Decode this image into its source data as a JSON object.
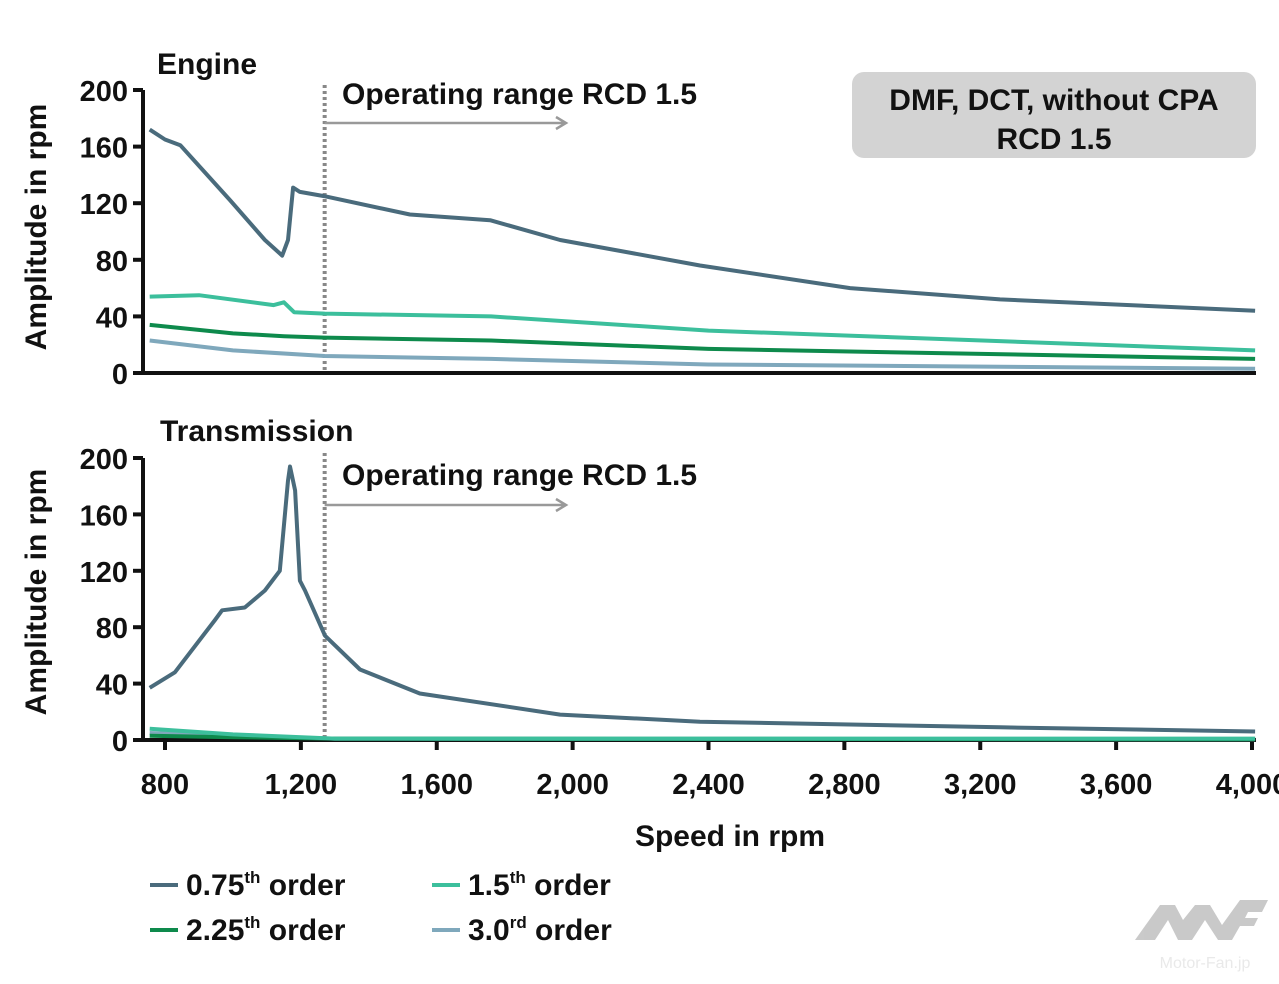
{
  "chart_data": [
    {
      "type": "line",
      "title": "Engine",
      "xlabel": "",
      "ylabel": "Amplitude in rpm",
      "xlim": [
        740,
        4010
      ],
      "ylim": [
        0,
        200
      ],
      "yticks": [
        "0",
        "40",
        "80",
        "120",
        "160",
        "200"
      ],
      "annotation": "Operating range RCD 1.5",
      "operating_range_start_rpm": 1270,
      "box_label": [
        "DMF, DCT, without CPA",
        "RCD 1.5"
      ],
      "series": [
        {
          "name": "0.75th order",
          "color": "#4a6b7c",
          "x": [
            755,
            800,
            845,
            992,
            1094,
            1145,
            1162,
            1177,
            1197,
            1268,
            1521,
            1757,
            1963,
            2375,
            2817,
            3258,
            4009
          ],
          "y": [
            172,
            165,
            161,
            122,
            94,
            83,
            94,
            131,
            128,
            125,
            112,
            108,
            94,
            76,
            60,
            52,
            44
          ]
        },
        {
          "name": "1.5th order",
          "color": "#3cbf9c",
          "x": [
            755,
            900,
            1120,
            1150,
            1180,
            1270,
            1760,
            2400,
            4009
          ],
          "y": [
            54,
            55,
            48,
            50,
            43,
            42,
            40,
            30,
            16
          ]
        },
        {
          "name": "2.25th order",
          "color": "#0e8a4c",
          "x": [
            755,
            1000,
            1150,
            1270,
            1760,
            2400,
            4009
          ],
          "y": [
            34,
            28,
            26,
            25,
            23,
            17,
            10
          ]
        },
        {
          "name": "3.0rd order",
          "color": "#7fa8bc",
          "x": [
            755,
            1000,
            1270,
            1760,
            2400,
            4009
          ],
          "y": [
            23,
            16,
            12,
            10,
            6,
            3
          ]
        }
      ]
    },
    {
      "type": "line",
      "title": "Transmission",
      "xlabel": "Speed in rpm",
      "ylabel": "Amplitude in rpm",
      "xlim": [
        740,
        4010
      ],
      "ylim": [
        0,
        200
      ],
      "xticks": [
        "800",
        "1,200",
        "1,600",
        "2,000",
        "2,400",
        "2,800",
        "3,200",
        "3,600",
        "4,000"
      ],
      "yticks": [
        "0",
        "40",
        "80",
        "120",
        "160",
        "200"
      ],
      "annotation": "Operating range RCD 1.5",
      "operating_range_start_rpm": 1270,
      "series": [
        {
          "name": "0.75th order",
          "color": "#4a6b7c",
          "x": [
            755,
            829,
            947,
            968,
            1035,
            1094,
            1138,
            1162,
            1168,
            1183,
            1197,
            1212,
            1271,
            1374,
            1550,
            1963,
            2375,
            3258,
            4009
          ],
          "y": [
            37,
            48,
            85,
            92,
            94,
            106,
            120,
            184,
            194,
            177,
            113,
            106,
            74,
            50,
            33,
            18,
            13,
            9,
            6
          ]
        },
        {
          "name": "1.5th order",
          "color": "#3cbf9c",
          "x": [
            755,
            1000,
            1300,
            4009
          ],
          "y": [
            8,
            4,
            1,
            1
          ]
        },
        {
          "name": "2.25th order",
          "color": "#0e8a4c",
          "x": [
            755,
            1000,
            1300,
            4009
          ],
          "y": [
            3,
            2,
            1,
            0.5
          ]
        },
        {
          "name": "3.0rd order",
          "color": "#7fa8bc",
          "x": [
            755,
            1000,
            1300,
            4009
          ],
          "y": [
            5,
            3,
            1,
            0.5
          ]
        }
      ]
    }
  ],
  "legend": [
    {
      "base": "0.75",
      "sup": "th",
      "rest": " order",
      "color": "#4a6b7c"
    },
    {
      "base": "1.5",
      "sup": "th",
      "rest": " order",
      "color": "#3cbf9c"
    },
    {
      "base": "2.25",
      "sup": "th",
      "rest": " order",
      "color": "#0e8a4c"
    },
    {
      "base": "3.0",
      "sup": "rd",
      "rest": " order",
      "color": "#7fa8bc"
    }
  ],
  "watermark": "Motor-Fan.jp"
}
